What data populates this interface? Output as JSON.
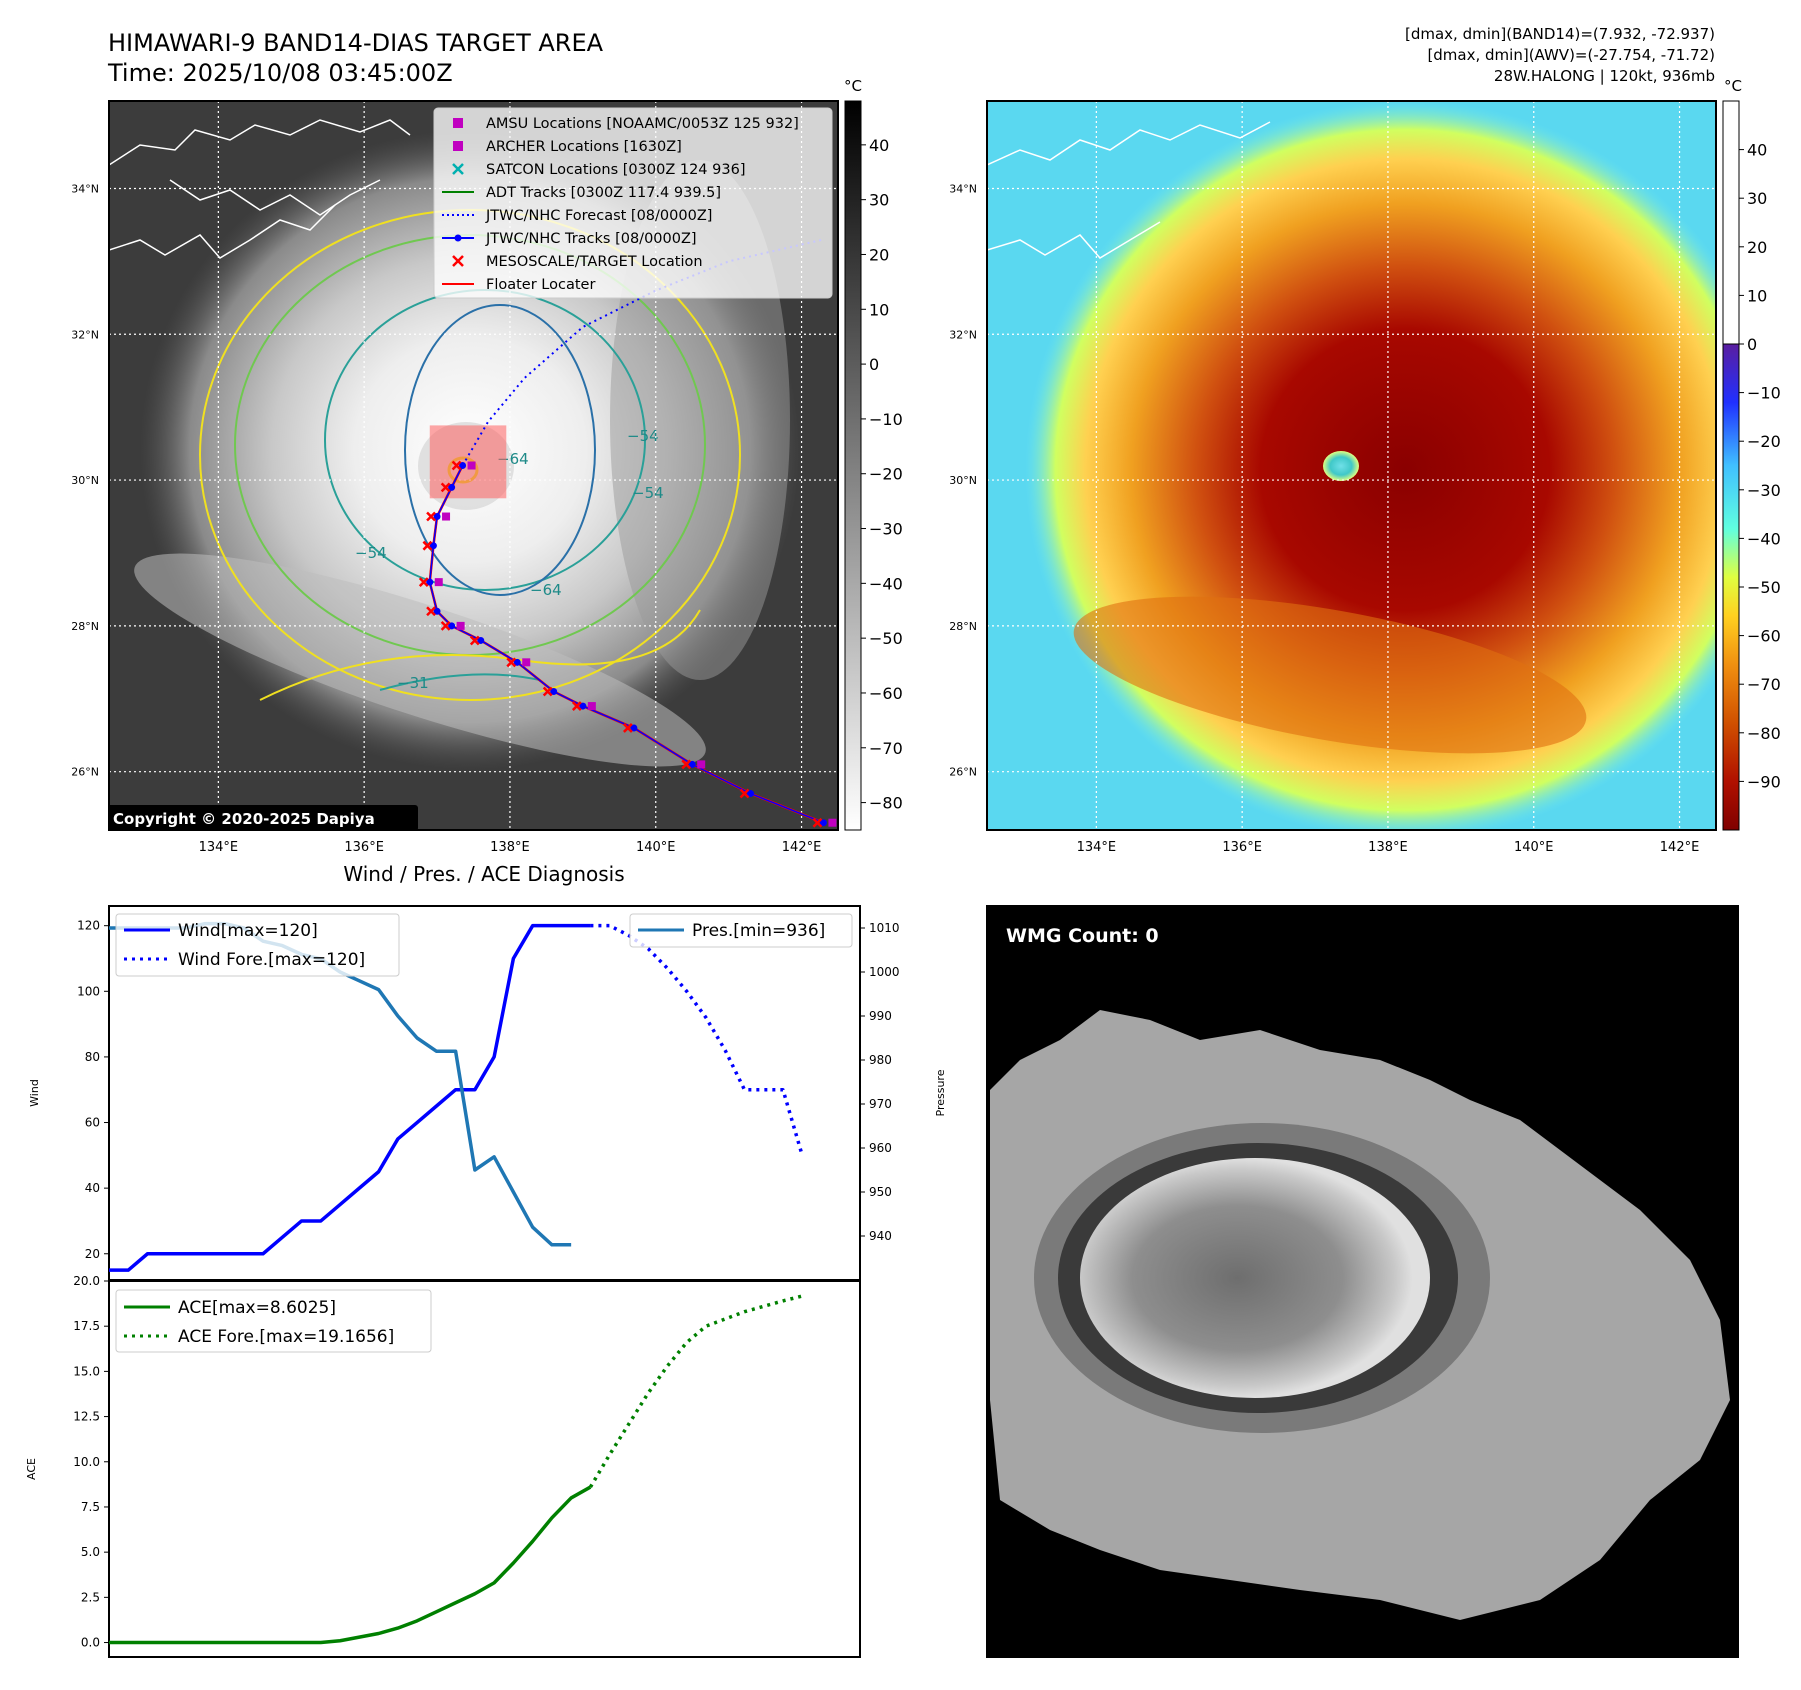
{
  "header": {
    "title_line1": "HIMAWARI-9 BAND14-DIAS TARGET AREA",
    "title_line2": "Time: 2025/10/08 03:45:00Z",
    "stats_line1": "[dmax, dmin](BAND14)=(7.932, -72.937)",
    "stats_line2": "[dmax, dmin](AWV)=(-27.754, -71.72)",
    "stats_line3": "28W.HALONG | 120kt, 936mb"
  },
  "map_axes": {
    "lat_labels": [
      "34°N",
      "32°N",
      "30°N",
      "28°N",
      "26°N"
    ],
    "lat_values": [
      34,
      32,
      30,
      28,
      26
    ],
    "lon_labels": [
      "134°E",
      "136°E",
      "138°E",
      "140°E",
      "142°E"
    ],
    "lon_values": [
      134,
      136,
      138,
      140,
      142
    ],
    "lon_range": [
      132.5,
      142.5
    ],
    "lat_range": [
      25.2,
      35.2
    ]
  },
  "left_map": {
    "copyright": "Copyright © 2020-2025 Dapiya",
    "colorbar_unit": "°C",
    "colorbar_ticks": [
      "40",
      "30",
      "20",
      "10",
      "0",
      "−10",
      "−20",
      "−30",
      "−40",
      "−50",
      "−60",
      "−70",
      "−80"
    ],
    "colorbar_values": [
      40,
      30,
      20,
      10,
      0,
      -10,
      -20,
      -30,
      -40,
      -50,
      -60,
      -70,
      -80
    ],
    "colorbar_range": [
      -85,
      48
    ],
    "contour_labels": [
      "−64",
      "−54",
      "−54",
      "−54",
      "−64",
      "−31"
    ],
    "legend": [
      {
        "label": "AMSU Locations [NOAAMC/0053Z 125 932]",
        "marker": "square",
        "color": "#c000c0"
      },
      {
        "label": "ARCHER Locations [1630Z]",
        "marker": "square",
        "color": "#c000c0"
      },
      {
        "label": "SATCON Locations [0300Z 124 936]",
        "marker": "x",
        "color": "#00b0b0"
      },
      {
        "label": "ADT Tracks [0300Z 117.4 939.5]",
        "marker": "line",
        "color": "#008000"
      },
      {
        "label": "JTWC/NHC Forecast [08/0000Z]",
        "marker": "dotted",
        "color": "#0000ff"
      },
      {
        "label": "JTWC/NHC Tracks [08/0000Z]",
        "marker": "line-dot",
        "color": "#0000ff"
      },
      {
        "label": "MESOSCALE/TARGET Location",
        "marker": "x",
        "color": "#ff0000"
      },
      {
        "label": "Floater Locater",
        "marker": "line",
        "color": "#ff0000"
      }
    ],
    "track_points": [
      [
        142.3,
        25.3
      ],
      [
        141.3,
        25.7
      ],
      [
        140.5,
        26.1
      ],
      [
        139.7,
        26.6
      ],
      [
        139.0,
        26.9
      ],
      [
        138.6,
        27.1
      ],
      [
        138.1,
        27.5
      ],
      [
        137.6,
        27.8
      ],
      [
        137.2,
        28.0
      ],
      [
        137.0,
        28.2
      ],
      [
        136.9,
        28.6
      ],
      [
        136.95,
        29.1
      ],
      [
        137.0,
        29.5
      ],
      [
        137.2,
        29.9
      ],
      [
        137.35,
        30.2
      ]
    ],
    "forecast_points": [
      [
        137.35,
        30.2
      ],
      [
        137.7,
        30.8
      ],
      [
        138.2,
        31.4
      ],
      [
        139.0,
        32.1
      ],
      [
        140.0,
        32.6
      ],
      [
        141.0,
        33.0
      ],
      [
        142.3,
        33.3
      ]
    ],
    "target_box": {
      "lon_min": 136.9,
      "lon_max": 137.95,
      "lat_min": 29.75,
      "lat_max": 30.75
    }
  },
  "right_map": {
    "colorbar_unit": "°C",
    "colorbar_ticks_upper": [
      "40",
      "30",
      "20",
      "10",
      "0"
    ],
    "colorbar_ticks_lower": [
      "−10",
      "−20",
      "−30",
      "−40",
      "−50",
      "−60",
      "−70",
      "−80",
      "−90"
    ],
    "colorbar_values_upper": [
      40,
      30,
      20,
      10,
      0
    ],
    "colorbar_values_lower": [
      -10,
      -20,
      -30,
      -40,
      -50,
      -60,
      -70,
      -80,
      -90
    ],
    "colorbar_range": [
      -100,
      50
    ]
  },
  "wmg": {
    "label": "WMG Count: 0"
  },
  "chart_data": [
    {
      "type": "line",
      "title": "Wind / Pres. / ACE Diagnosis",
      "ylabel": "Wind",
      "ylabel_right": "Pressure",
      "ylim": [
        12,
        126
      ],
      "ylim_right": [
        930,
        1015
      ],
      "xlim": [
        0,
        39
      ],
      "yticks": [
        20,
        40,
        60,
        80,
        100,
        120
      ],
      "yticks_right": [
        940,
        950,
        960,
        970,
        980,
        990,
        1000,
        1010
      ],
      "series": [
        {
          "name": "Wind[max=120]",
          "axis": "left",
          "style": "solid",
          "color": "#0000ff",
          "x": [
            0,
            1,
            2,
            3,
            4,
            5,
            6,
            7,
            8,
            9,
            10,
            11,
            12,
            13,
            14,
            15,
            16,
            17,
            18,
            19,
            20,
            21,
            22,
            23,
            24,
            25
          ],
          "y": [
            15,
            15,
            20,
            20,
            20,
            20,
            20,
            20,
            20,
            25,
            30,
            30,
            35,
            40,
            45,
            55,
            60,
            65,
            70,
            70,
            80,
            110,
            120,
            120,
            120,
            120
          ]
        },
        {
          "name": "Wind Fore.[max=120]",
          "axis": "left",
          "style": "dotted",
          "color": "#0000ff",
          "x": [
            25,
            26,
            27,
            28,
            29,
            30,
            31,
            32,
            33,
            34,
            35,
            36
          ],
          "y": [
            120,
            120,
            117,
            113,
            107,
            100,
            92,
            82,
            70,
            70,
            70,
            50
          ]
        },
        {
          "name": "Pres.[min=936]",
          "axis": "right",
          "style": "solid",
          "color": "#1f77b4",
          "x": [
            0,
            1,
            2,
            3,
            4,
            5,
            6,
            7,
            8,
            9,
            10,
            11,
            12,
            13,
            14,
            15,
            16,
            17,
            18,
            19,
            20,
            21,
            22,
            23,
            24
          ],
          "y": [
            1010,
            1010,
            1010,
            1010,
            1010,
            1011,
            1011,
            1010,
            1007,
            1006,
            1004,
            1003,
            1000,
            998,
            996,
            990,
            985,
            982,
            982,
            955,
            958,
            950,
            942,
            938,
            938
          ]
        }
      ]
    },
    {
      "type": "line",
      "ylabel": "ACE",
      "ylim": [
        -0.8,
        20
      ],
      "xlim": [
        0,
        39
      ],
      "yticks": [
        "0.0",
        "2.5",
        "5.0",
        "7.5",
        "10.0",
        "12.5",
        "15.0",
        "17.5",
        "20.0"
      ],
      "ytick_values": [
        0,
        2.5,
        5,
        7.5,
        10,
        12.5,
        15,
        17.5,
        20
      ],
      "series": [
        {
          "name": "ACE[max=8.6025]",
          "style": "solid",
          "color": "#008000",
          "x": [
            0,
            2,
            4,
            6,
            8,
            10,
            11,
            12,
            13,
            14,
            15,
            16,
            17,
            18,
            19,
            20,
            21,
            22,
            23,
            24,
            25
          ],
          "y": [
            0,
            0,
            0,
            0,
            0,
            0,
            0,
            0.1,
            0.3,
            0.5,
            0.8,
            1.2,
            1.7,
            2.2,
            2.7,
            3.3,
            4.4,
            5.6,
            6.9,
            8.0,
            8.6
          ]
        },
        {
          "name": "ACE Fore.[max=19.1656]",
          "style": "dotted",
          "color": "#008000",
          "x": [
            25,
            26,
            27,
            28,
            29,
            30,
            31,
            32,
            33,
            34,
            35,
            36
          ],
          "y": [
            8.6,
            10.4,
            12.1,
            13.8,
            15.3,
            16.6,
            17.5,
            17.9,
            18.3,
            18.6,
            18.9,
            19.17
          ]
        }
      ]
    }
  ]
}
